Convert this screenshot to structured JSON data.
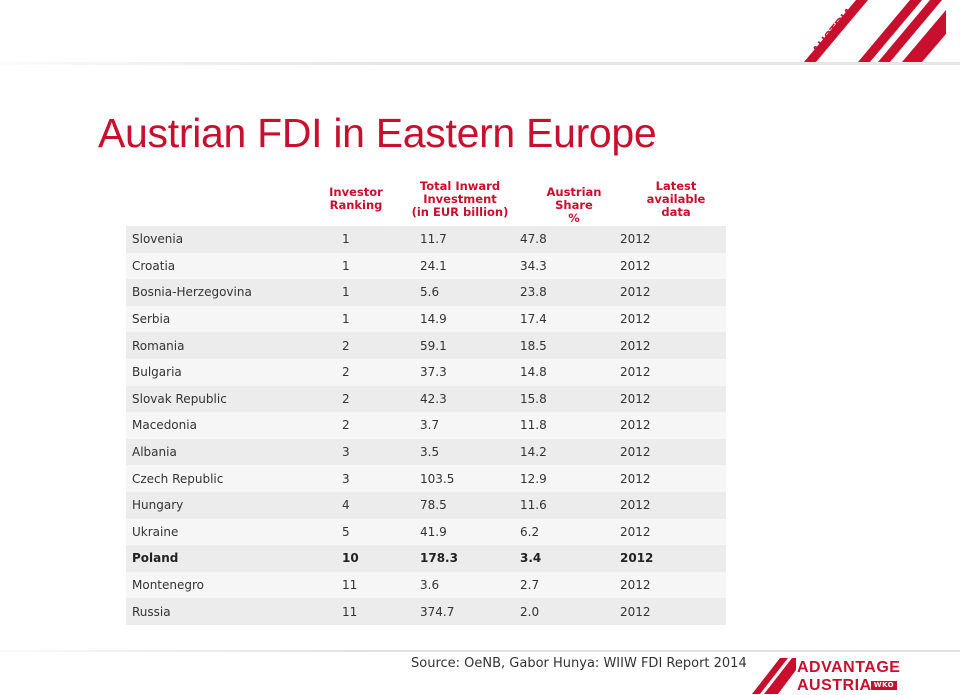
{
  "brand": {
    "top_logo_text": "AUSTRIA",
    "bottom_logo_line1": "ADVANTAGE",
    "bottom_logo_line2": "AUSTRIA",
    "bottom_logo_badge": "WKO",
    "accent_color": "#c8102e"
  },
  "title": "Austrian FDI in Eastern Europe",
  "table": {
    "headers": {
      "ranking": [
        "Investor",
        "Ranking"
      ],
      "investment": [
        "Total Inward",
        "Investment",
        "(in EUR billion)"
      ],
      "share": [
        "Austrian Share",
        "%"
      ],
      "latest": [
        "Latest",
        "available",
        "data"
      ]
    },
    "rows": [
      {
        "country": "Slovenia",
        "rank": "1",
        "investment": "11.7",
        "share": "47.8",
        "year": "2012",
        "bold": false
      },
      {
        "country": "Croatia",
        "rank": "1",
        "investment": "24.1",
        "share": "34.3",
        "year": "2012",
        "bold": false
      },
      {
        "country": "Bosnia-Herzegovina",
        "rank": "1",
        "investment": "5.6",
        "share": "23.8",
        "year": "2012",
        "bold": false
      },
      {
        "country": "Serbia",
        "rank": "1",
        "investment": "14.9",
        "share": "17.4",
        "year": "2012",
        "bold": false
      },
      {
        "country": "Romania",
        "rank": "2",
        "investment": "59.1",
        "share": "18.5",
        "year": "2012",
        "bold": false
      },
      {
        "country": "Bulgaria",
        "rank": "2",
        "investment": "37.3",
        "share": "14.8",
        "year": "2012",
        "bold": false
      },
      {
        "country": "Slovak Republic",
        "rank": "2",
        "investment": "42.3",
        "share": "15.8",
        "year": "2012",
        "bold": false
      },
      {
        "country": "Macedonia",
        "rank": "2",
        "investment": "3.7",
        "share": "11.8",
        "year": "2012",
        "bold": false
      },
      {
        "country": "Albania",
        "rank": "3",
        "investment": "3.5",
        "share": "14.2",
        "year": "2012",
        "bold": false
      },
      {
        "country": "Czech Republic",
        "rank": "3",
        "investment": "103.5",
        "share": "12.9",
        "year": "2012",
        "bold": false
      },
      {
        "country": "Hungary",
        "rank": "4",
        "investment": "78.5",
        "share": "11.6",
        "year": "2012",
        "bold": false
      },
      {
        "country": "Ukraine",
        "rank": "5",
        "investment": "41.9",
        "share": "6.2",
        "year": "2012",
        "bold": false
      },
      {
        "country": "Poland",
        "rank": "10",
        "investment": "178.3",
        "share": "3.4",
        "year": "2012",
        "bold": true
      },
      {
        "country": "Montenegro",
        "rank": "11",
        "investment": "3.6",
        "share": "2.7",
        "year": "2012",
        "bold": false
      },
      {
        "country": "Russia",
        "rank": "11",
        "investment": "374.7",
        "share": "2.0",
        "year": "2012",
        "bold": false
      }
    ]
  },
  "source": "Source: OeNB, Gabor Hunya: WIIW FDI Report 2014"
}
